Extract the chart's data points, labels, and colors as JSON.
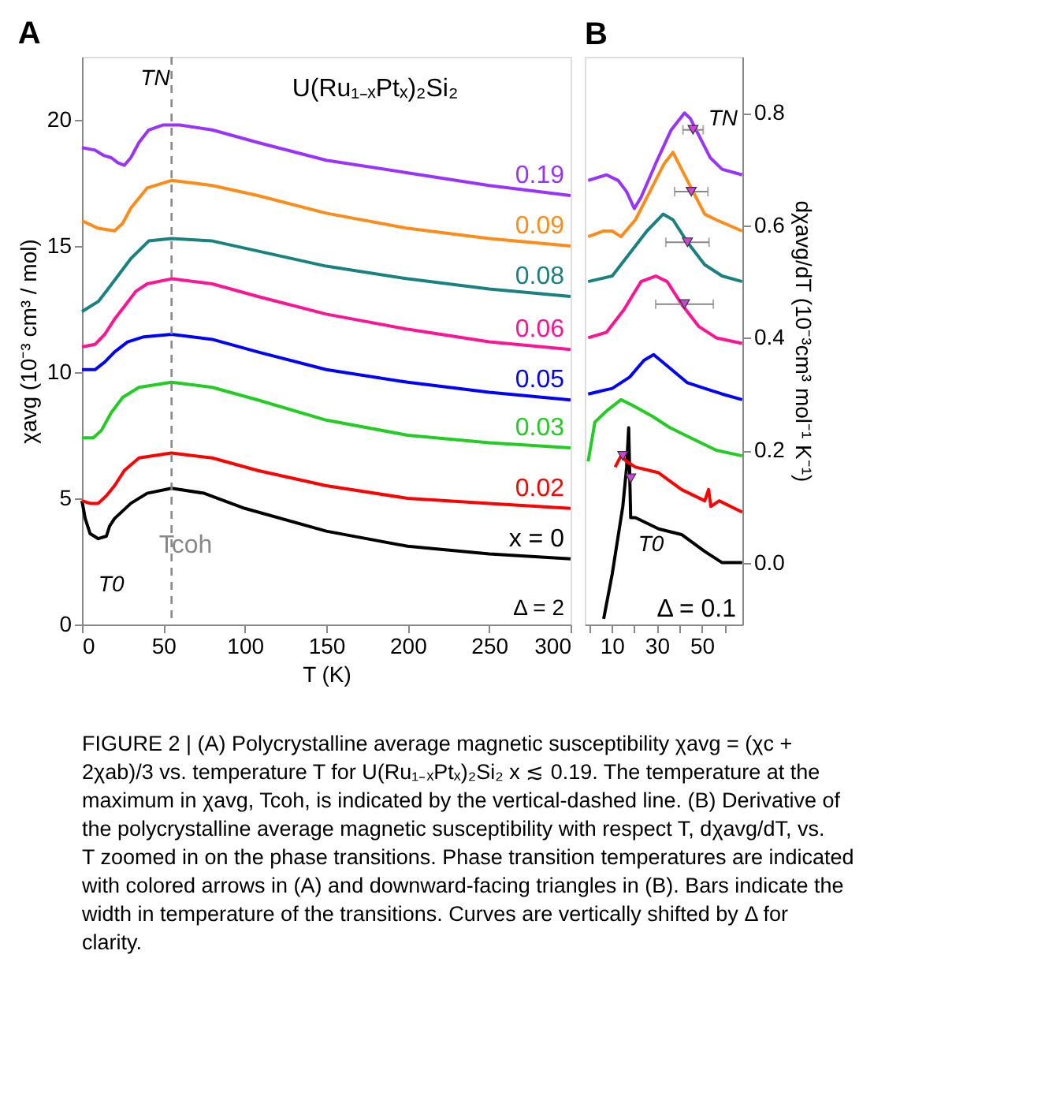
{
  "chart_data": [
    {
      "type": "line",
      "title": "A",
      "xlabel": "T (K)",
      "ylabel": "χavg (10⁻³ cm³ / mol)",
      "xlim": [
        0,
        300
      ],
      "xticks": [
        0,
        50,
        100,
        150,
        200,
        250,
        300
      ],
      "ylim": [
        0,
        22.5
      ],
      "yticks": [
        0,
        5,
        10,
        15,
        20
      ],
      "grid": false,
      "legend": "right",
      "series": [
        {
          "name": "x = 0",
          "color": "#000000",
          "x": [
            0,
            2,
            5,
            10,
            15,
            17,
            20,
            30,
            40,
            55,
            75,
            100,
            150,
            200,
            250,
            300
          ],
          "values": [
            4.9,
            4.2,
            3.6,
            3.4,
            3.5,
            3.9,
            4.2,
            4.8,
            5.2,
            5.4,
            5.2,
            4.6,
            3.7,
            3.1,
            2.8,
            2.6
          ]
        },
        {
          "name": "0.02",
          "color": "#ff0000",
          "x": [
            0,
            5,
            10,
            15,
            20,
            26,
            35,
            55,
            80,
            108,
            150,
            200,
            250,
            300
          ],
          "values": [
            4.9,
            4.8,
            4.8,
            5.1,
            5.5,
            6.1,
            6.6,
            6.8,
            6.6,
            6.1,
            5.5,
            5.0,
            4.8,
            4.6
          ]
        },
        {
          "name": "0.03",
          "color": "#22cc22",
          "x": [
            0,
            7,
            12,
            18,
            25,
            35,
            55,
            80,
            108,
            150,
            200,
            250,
            300
          ],
          "values": [
            7.4,
            7.4,
            7.7,
            8.4,
            9.0,
            9.4,
            9.6,
            9.4,
            8.9,
            8.1,
            7.5,
            7.2,
            7.0
          ]
        },
        {
          "name": "0.05",
          "color": "#0000ff",
          "x": [
            0,
            8,
            14,
            20,
            28,
            38,
            55,
            80,
            108,
            150,
            200,
            250,
            300
          ],
          "values": [
            10.1,
            10.1,
            10.4,
            10.8,
            11.2,
            11.4,
            11.5,
            11.3,
            10.8,
            10.1,
            9.6,
            9.2,
            8.9
          ]
        },
        {
          "name": "0.06",
          "color": "#ff1493",
          "x": [
            0,
            8,
            14,
            20,
            26,
            33,
            40,
            55,
            80,
            108,
            150,
            200,
            250,
            300
          ],
          "values": [
            11.0,
            11.1,
            11.5,
            12.1,
            12.6,
            13.2,
            13.5,
            13.7,
            13.5,
            13.0,
            12.3,
            11.7,
            11.2,
            10.9
          ]
        },
        {
          "name": "0.08",
          "color": "#1a8080",
          "x": [
            0,
            5,
            10,
            16,
            23,
            30,
            41,
            55,
            80,
            108,
            150,
            200,
            250,
            300
          ],
          "values": [
            12.4,
            12.6,
            12.8,
            13.3,
            13.9,
            14.5,
            15.2,
            15.3,
            15.2,
            14.8,
            14.2,
            13.7,
            13.3,
            13.0
          ]
        },
        {
          "name": "0.09",
          "color": "#ff8c1a",
          "x": [
            0,
            10,
            20,
            25,
            30,
            40,
            55,
            80,
            108,
            150,
            200,
            250,
            300
          ],
          "values": [
            16.0,
            15.7,
            15.6,
            15.9,
            16.5,
            17.3,
            17.6,
            17.4,
            17.0,
            16.3,
            15.7,
            15.3,
            15.0
          ]
        },
        {
          "name": "0.19",
          "color": "#9933ff",
          "x": [
            0,
            8,
            13,
            18,
            22,
            26,
            30,
            35,
            41,
            50,
            60,
            80,
            108,
            150,
            200,
            250,
            300
          ],
          "values": [
            18.9,
            18.8,
            18.6,
            18.5,
            18.3,
            18.2,
            18.5,
            19.1,
            19.6,
            19.8,
            19.8,
            19.6,
            19.1,
            18.4,
            17.9,
            17.4,
            17.0
          ]
        }
      ],
      "ref_lines": [
        {
          "axis": "x",
          "value": 55,
          "label": "Tcoh",
          "color": "#888888",
          "line_style": "dashed"
        }
      ],
      "annotations": [
        "U(Ru₁₋ₓPtₓ)₂Si₂",
        "Δ = 2",
        "TN",
        "T0",
        "FIGURE 2 | (A) Polycrystalline average magnetic susceptibility χavg = (χc + 2χab)/3 vs. temperature T for U(Ru₁₋ₓPtₓ)₂Si₂ x ≲ 0.19. The temperature at the maximum in χavg, Tcoh, is indicated by the vertical-dashed line. (B) Derivative of the polycrystalline average magnetic susceptibility with respect T, dχavg/dT, vs. T zoomed in on the phase transitions. Phase transition temperatures are indicated with colored arrows in (A) and downward-facing triangles in (B). Bars indicate the width in temperature of the transitions. Curves are vertically shifted by Δ for clarity."
      ]
    },
    {
      "type": "line",
      "title": "B",
      "ylabel": "dχavg/dT (10⁻³cm³ mol⁻¹ K⁻¹)",
      "xlim": [
        -2,
        68
      ],
      "xticks": [
        {
          "value": 0,
          "label": null
        },
        10,
        {
          "value": 20,
          "label": null
        },
        30,
        {
          "value": 40,
          "label": null
        },
        50,
        {
          "value": 60,
          "label": null
        }
      ],
      "ylim": [
        -0.11,
        0.9
      ],
      "yticks": [
        {
          "value": 0,
          "label": "0.0"
        },
        0.2,
        0.4,
        0.6,
        0.8
      ],
      "grid": false,
      "series": [
        {
          "color": "#000000",
          "x": [
            6.4,
            10.2,
            14.9,
            16.6,
            17.5,
            18.4,
            20.5,
            30.8,
            41,
            51.3,
            59,
            67.9
          ],
          "values": [
            -0.1,
            -0.02,
            0.1,
            0.17,
            0.24,
            0.08,
            0.08,
            0.06,
            0.05,
            0.02,
            0.0,
            0.0
          ]
        },
        {
          "color": "#ff0000",
          "x": [
            11.5,
            14.1,
            16.6,
            20.5,
            30.8,
            41,
            51.3,
            53,
            54,
            57.7,
            67.9
          ],
          "values": [
            0.17,
            0.19,
            0.18,
            0.17,
            0.16,
            0.13,
            0.11,
            0.13,
            0.1,
            0.11,
            0.09
          ]
        },
        {
          "color": "#22cc22",
          "x": [
            -0.5,
            2.5,
            7.7,
            14.1,
            19.2,
            28.2,
            35.9,
            46.1,
            56.4,
            67.9
          ],
          "values": [
            0.18,
            0.25,
            0.27,
            0.29,
            0.28,
            0.26,
            0.24,
            0.22,
            0.2,
            0.19
          ]
        },
        {
          "color": "#0000ff",
          "x": [
            -0.5,
            10.2,
            17.9,
            24.3,
            28.6,
            34.6,
            43.6,
            51.3,
            59,
            67.9
          ],
          "values": [
            0.3,
            0.31,
            0.33,
            0.36,
            0.37,
            0.35,
            0.32,
            0.31,
            0.3,
            0.29
          ]
        },
        {
          "color": "#ff1493",
          "x": [
            -0.5,
            7.7,
            15.4,
            23,
            29.5,
            34.6,
            41,
            48.7,
            56.4,
            67.9
          ],
          "values": [
            0.4,
            0.41,
            0.45,
            0.5,
            0.51,
            0.5,
            0.46,
            0.42,
            0.4,
            0.39
          ]
        },
        {
          "color": "#1a8080",
          "x": [
            -0.5,
            10.2,
            17.9,
            25.6,
            32.8,
            37.2,
            43.6,
            51.3,
            59,
            67.9
          ],
          "values": [
            0.5,
            0.51,
            0.55,
            0.59,
            0.62,
            0.61,
            0.57,
            0.53,
            0.51,
            0.5
          ]
        },
        {
          "color": "#ff8c1a",
          "x": [
            -0.5,
            6.4,
            10.2,
            14.1,
            20.5,
            28.2,
            33.3,
            37.2,
            41,
            46.1,
            51.3,
            56.4,
            67.9
          ],
          "values": [
            0.58,
            0.59,
            0.59,
            0.58,
            0.61,
            0.67,
            0.71,
            0.73,
            0.7,
            0.66,
            0.62,
            0.61,
            0.59
          ]
        },
        {
          "color": "#9933ff",
          "x": [
            -0.5,
            7.7,
            12.8,
            16.6,
            20,
            23,
            29.5,
            36.4,
            42.3,
            44.9,
            48.7,
            53.8,
            59,
            67.9
          ],
          "values": [
            0.68,
            0.69,
            0.68,
            0.66,
            0.63,
            0.65,
            0.71,
            0.77,
            0.8,
            0.79,
            0.76,
            0.72,
            0.7,
            0.69
          ]
        },
        {
          "type": "scatter",
          "marker": "triangle",
          "color": "#cc44dd",
          "x": [
            46.1,
            45.3,
            43.6,
            42.3,
            14.9,
            18.4
          ],
          "values": [
            0.77,
            0.66,
            0.57,
            0.46,
            0.19,
            0.15
          ],
          "xerrors": [
            4.5,
            7.4,
            9.6,
            12.8,
            null,
            null
          ]
        }
      ],
      "annotations": [
        "Δ = 0.1",
        "TN",
        "T0"
      ]
    }
  ]
}
